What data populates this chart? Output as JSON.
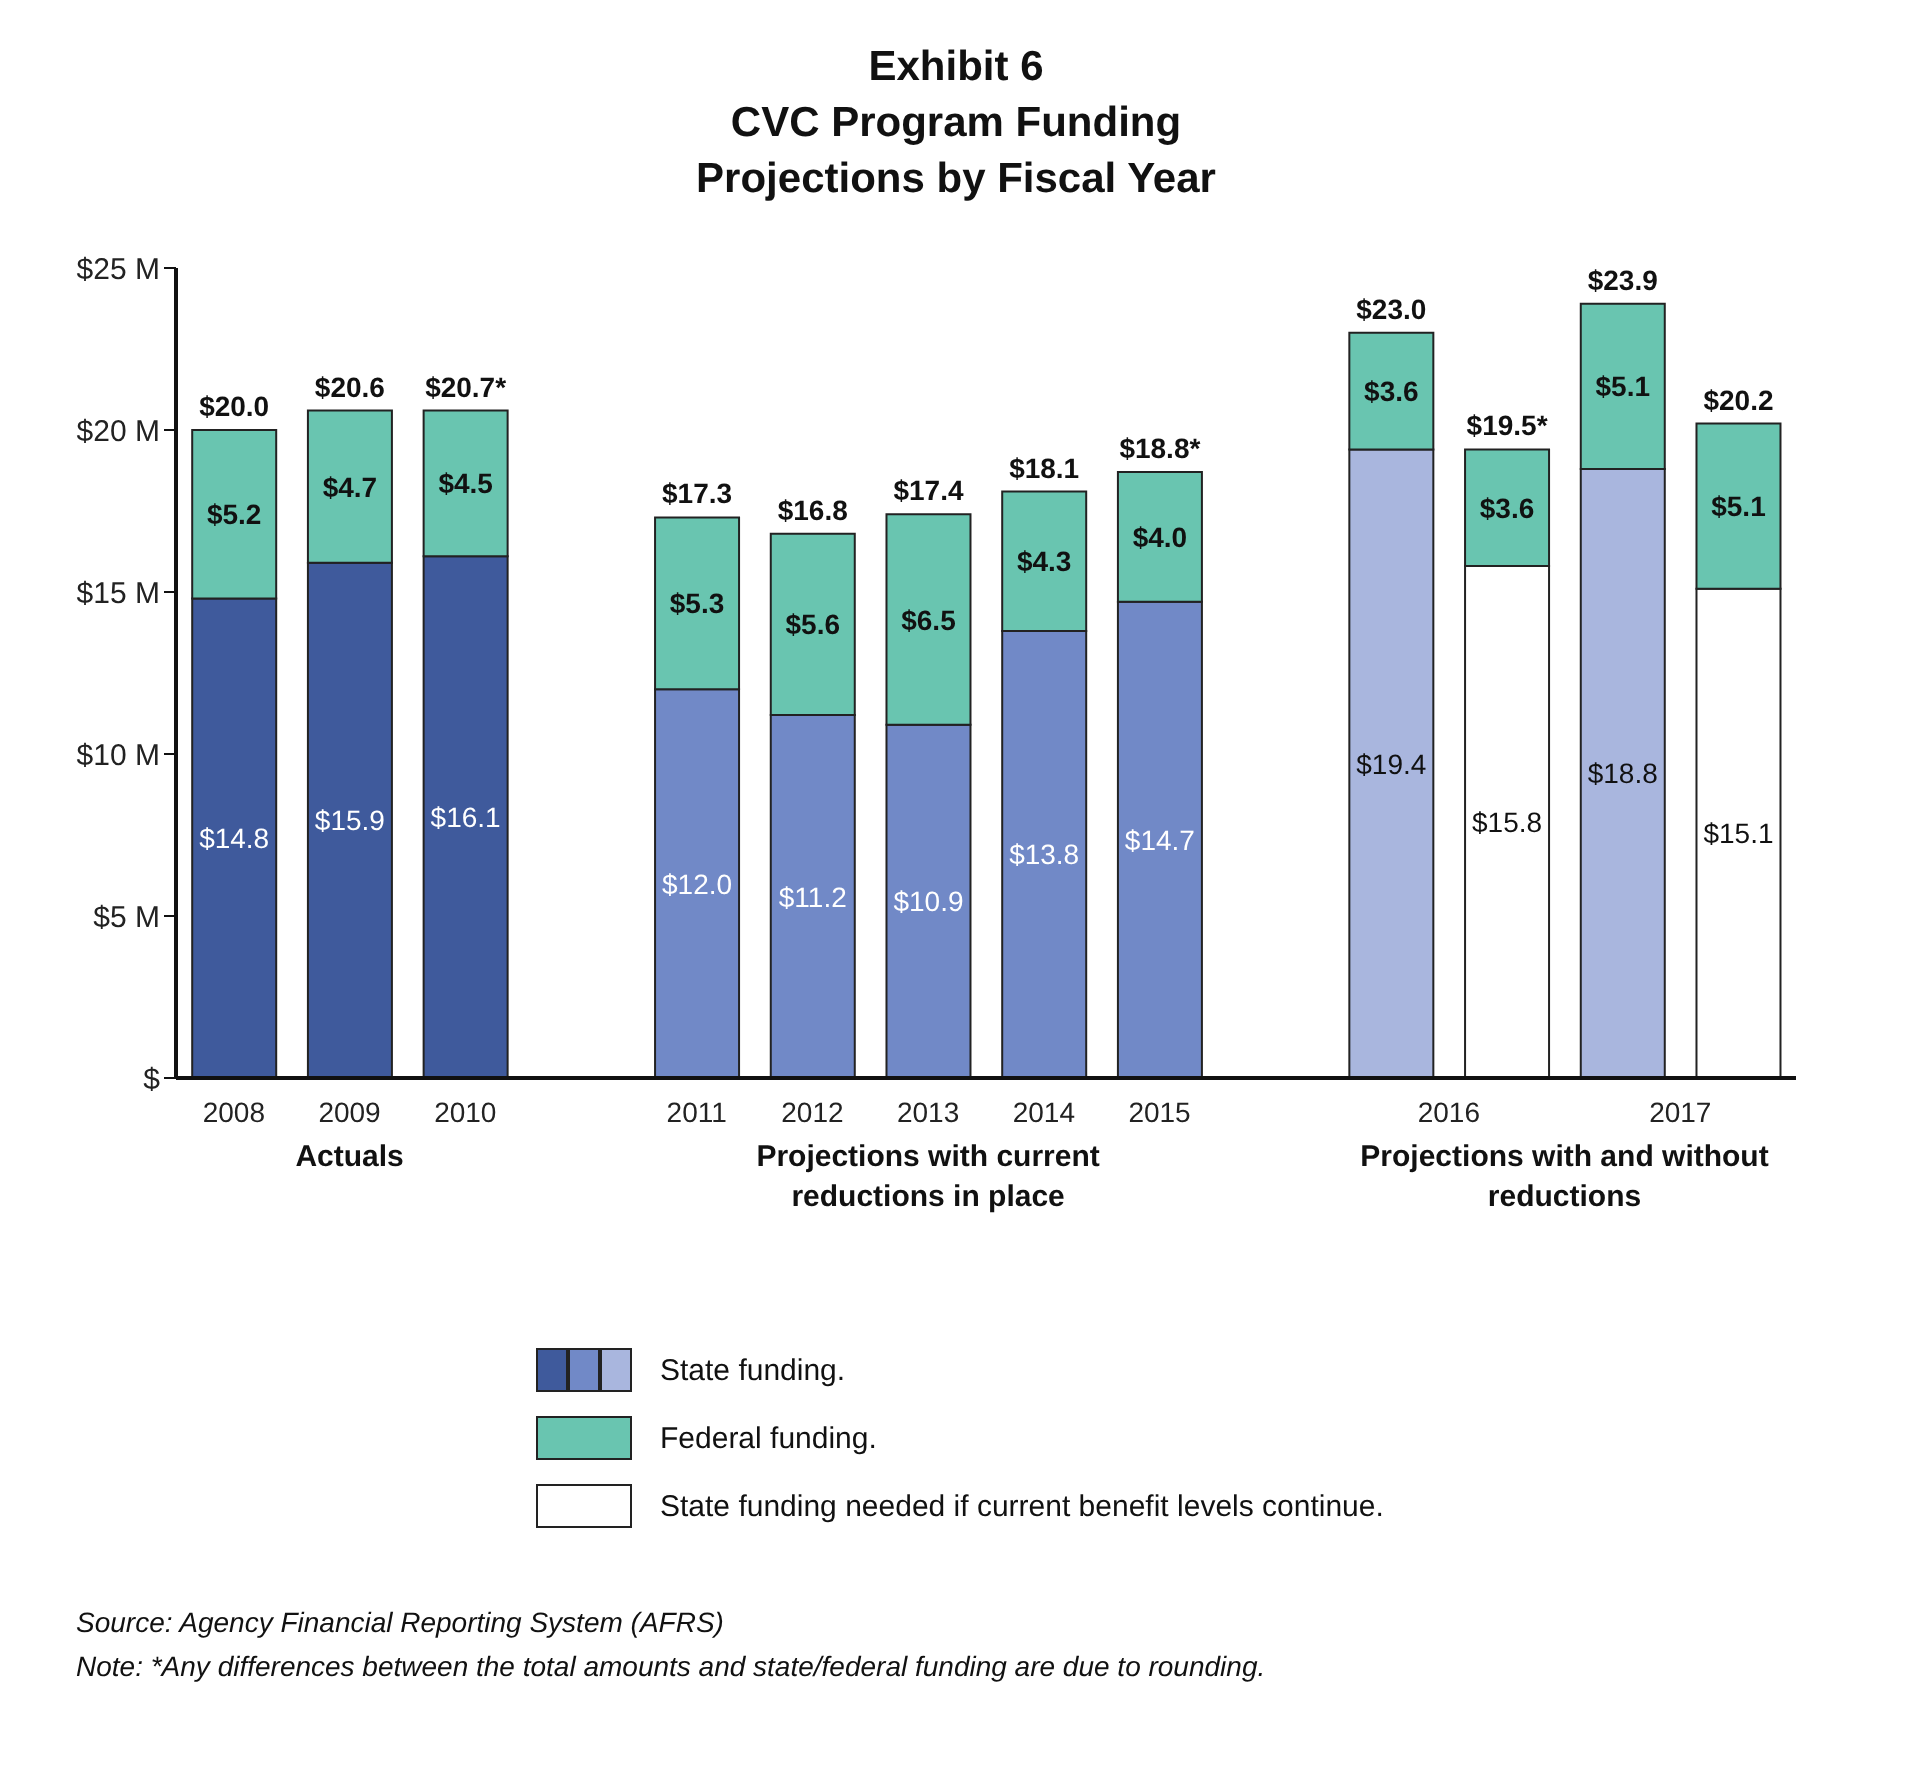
{
  "chart_data": {
    "type": "bar",
    "title": "Exhibit 6",
    "subtitle": "CVC Program Funding Projections by Fiscal Year",
    "categories": [
      "2008",
      "2009",
      "2010",
      null,
      "2011",
      "2012",
      "2013",
      "2014",
      "2015",
      null,
      "2016",
      null,
      "2017",
      null
    ],
    "stacked": true,
    "series": [
      {
        "name": "State funding.",
        "color": "#3f5a9c",
        "colors": [
          "#3f5a9c",
          "#3f5a9c",
          "#3f5a9c",
          null,
          "#7189c7",
          "#7189c7",
          "#7189c7",
          "#7189c7",
          "#7189c7",
          null,
          "#a9b6de",
          null,
          "#a9b6de",
          null
        ],
        "values": [
          14.8,
          15.9,
          16.1,
          null,
          12.0,
          11.2,
          10.9,
          13.8,
          14.7,
          null,
          19.4,
          null,
          18.8,
          null
        ],
        "value_labels": [
          "$14.8",
          "$15.9",
          "$16.1",
          null,
          "$12.0",
          "$11.2",
          "$10.9",
          "$13.8",
          "$14.7",
          null,
          "$19.4",
          null,
          "$18.8",
          null
        ]
      },
      {
        "name": "State funding needed if current benefit levels continue.",
        "color": "#ffffff",
        "values": [
          null,
          null,
          null,
          null,
          null,
          null,
          null,
          null,
          null,
          null,
          null,
          15.8,
          null,
          15.1
        ],
        "value_labels": [
          null,
          null,
          null,
          null,
          null,
          null,
          null,
          null,
          null,
          null,
          null,
          "$15.8",
          null,
          "$15.1"
        ]
      },
      {
        "name": "Federal funding.",
        "color": "#69c5b0",
        "values": [
          5.2,
          4.7,
          4.5,
          null,
          5.3,
          5.6,
          6.5,
          4.3,
          4.0,
          null,
          3.6,
          3.6,
          5.1,
          5.1
        ],
        "value_labels": [
          "$5.2",
          "$4.7",
          "$4.5",
          null,
          "$5.3",
          "$5.6",
          "$6.5",
          "$4.3",
          "$4.0",
          null,
          "$3.6",
          "$3.6",
          "$5.1",
          "$5.1"
        ]
      }
    ],
    "totals": [
      "$20.0",
      "$20.6",
      "$20.7*",
      null,
      "$17.3",
      "$16.8",
      "$17.4",
      "$18.1",
      "$18.8*",
      null,
      "$23.0",
      "$19.5*",
      "$23.9",
      "$20.2"
    ],
    "ylim": [
      0,
      25
    ],
    "yticks": [
      {
        "value": 0,
        "label": "$"
      },
      {
        "value": 5,
        "label": "$5 M"
      },
      {
        "value": 10,
        "label": "$10 M"
      },
      {
        "value": 15,
        "label": "$15 M"
      },
      {
        "value": 20,
        "label": "$20 M"
      },
      {
        "value": 25,
        "label": "$25 M"
      }
    ],
    "grid": false,
    "legend": "bottom",
    "annotations": [
      "Actuals",
      "Projections with current reductions in place",
      "Projections with and without reductions",
      "Source: Agency Financial Reporting System (AFRS)",
      "Note: *Any differences between the total amounts and state/federal funding are due to rounding."
    ]
  }
}
